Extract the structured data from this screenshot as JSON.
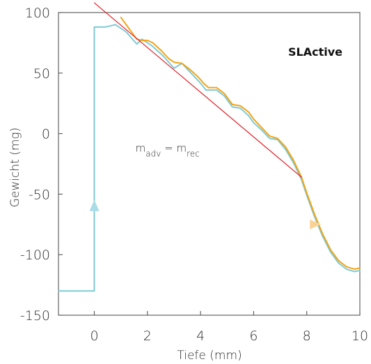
{
  "chart_data": {
    "type": "line",
    "title": "SLActive",
    "xlabel": "Tiefe (mm)",
    "ylabel": "Gewicht (mg)",
    "xlim": [
      -1.35,
      10
    ],
    "ylim": [
      -150,
      100
    ],
    "xticks": [
      0,
      2,
      4,
      6,
      8,
      10
    ],
    "yticks": [
      100,
      50,
      0,
      -50,
      -100,
      -150
    ],
    "grid": false,
    "annotation": {
      "base": "m",
      "sub1": "adv",
      "equals": " = ",
      "base2": "m",
      "sub2": "rec",
      "x": 1.55,
      "y": -15
    },
    "series": [
      {
        "key": "advance",
        "color": "#7fcad6",
        "points": [
          [
            -1.35,
            -130
          ],
          [
            0,
            -130
          ],
          [
            0,
            88
          ],
          [
            0.4,
            88
          ],
          [
            0.8,
            90
          ],
          [
            1.2,
            84
          ],
          [
            1.6,
            74
          ],
          [
            1.8,
            78
          ],
          [
            2.2,
            72
          ],
          [
            2.6,
            64
          ],
          [
            3.0,
            54
          ],
          [
            3.3,
            58
          ],
          [
            3.6,
            51
          ],
          [
            3.9,
            44
          ],
          [
            4.1,
            39
          ],
          [
            4.2,
            36
          ],
          [
            4.6,
            36
          ],
          [
            4.9,
            31
          ],
          [
            5.2,
            22
          ],
          [
            5.5,
            21
          ],
          [
            5.8,
            15
          ],
          [
            6.0,
            9
          ],
          [
            6.3,
            3
          ],
          [
            6.6,
            -4
          ],
          [
            6.9,
            -5
          ],
          [
            7.2,
            -13
          ],
          [
            7.5,
            -24
          ],
          [
            7.8,
            -38
          ],
          [
            8.0,
            -51
          ],
          [
            8.3,
            -69
          ],
          [
            8.6,
            -85
          ],
          [
            8.9,
            -98
          ],
          [
            9.2,
            -107
          ],
          [
            9.5,
            -112
          ],
          [
            9.8,
            -114
          ],
          [
            10.0,
            -113
          ]
        ]
      },
      {
        "key": "recede",
        "color": "#f3a313",
        "points": [
          [
            1.0,
            96
          ],
          [
            1.2,
            90
          ],
          [
            1.4,
            84
          ],
          [
            1.6,
            78
          ],
          [
            1.8,
            77
          ],
          [
            2.0,
            77
          ],
          [
            2.2,
            75
          ],
          [
            2.5,
            69
          ],
          [
            2.8,
            62
          ],
          [
            3.0,
            59
          ],
          [
            3.3,
            58
          ],
          [
            3.6,
            53
          ],
          [
            3.9,
            47
          ],
          [
            4.1,
            42
          ],
          [
            4.3,
            38
          ],
          [
            4.6,
            38
          ],
          [
            4.9,
            33
          ],
          [
            5.2,
            24
          ],
          [
            5.5,
            23
          ],
          [
            5.8,
            18
          ],
          [
            6.0,
            12
          ],
          [
            6.3,
            5
          ],
          [
            6.6,
            -2
          ],
          [
            6.9,
            -4
          ],
          [
            7.2,
            -11
          ],
          [
            7.5,
            -22
          ],
          [
            7.8,
            -36
          ],
          [
            8.0,
            -49
          ],
          [
            8.3,
            -67
          ],
          [
            8.6,
            -83
          ],
          [
            8.9,
            -96
          ],
          [
            9.2,
            -105
          ],
          [
            9.5,
            -110
          ],
          [
            9.8,
            -112
          ],
          [
            10.0,
            -111
          ]
        ]
      },
      {
        "key": "fit",
        "color": "#e11f27",
        "points": [
          [
            0,
            108
          ],
          [
            7.8,
            -36
          ]
        ]
      }
    ],
    "arrows": [
      {
        "key": "advance-arrow",
        "color": "#a9dce6",
        "x": 0,
        "y": -60,
        "direction": "up"
      },
      {
        "key": "recede-arrow",
        "color": "#fbd296",
        "x": 8.3,
        "y": -75,
        "direction": "right"
      }
    ]
  }
}
